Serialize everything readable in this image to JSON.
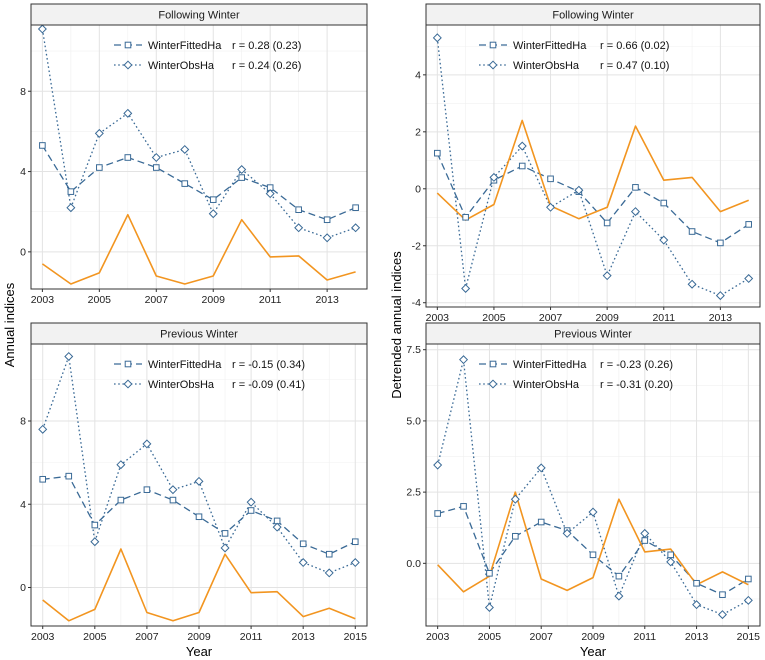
{
  "figure": {
    "left_ylabel": "Annual indices",
    "right_ylabel": "Detrended annual indices",
    "xlabel_left": "Year",
    "xlabel_right": "Year"
  },
  "chart_data": [
    {
      "type": "line",
      "strip": "Following Winter",
      "xlim": [
        2002.6,
        2014.4
      ],
      "ylim": [
        -1.85,
        11.3
      ],
      "yticks": [
        0,
        4,
        8
      ],
      "xticks": [
        2003,
        2005,
        2007,
        2009,
        2011,
        2013
      ],
      "grid": true,
      "legend": [
        {
          "name": "WinterFittedHa",
          "r": "r = 0.28 (0.23)",
          "marker": "square"
        },
        {
          "name": "WinterObsHa",
          "r": "r = 0.24 (0.26)",
          "marker": "diamond"
        }
      ],
      "series": [
        {
          "name": "WinterFittedHa",
          "color": "#3a6a96",
          "dash": "7,4",
          "marker": "square",
          "x": [
            2003,
            2004,
            2005,
            2006,
            2007,
            2008,
            2009,
            2010,
            2011,
            2012,
            2013,
            2014
          ],
          "y": [
            5.3,
            3.0,
            4.2,
            4.7,
            4.2,
            3.4,
            2.6,
            3.7,
            3.2,
            2.1,
            1.6,
            2.2
          ]
        },
        {
          "name": "WinterObsHa",
          "color": "#3a6a96",
          "dash": "1.6,2.6",
          "marker": "diamond",
          "x": [
            2003,
            2004,
            2005,
            2006,
            2007,
            2008,
            2009,
            2010,
            2011,
            2012,
            2013,
            2014
          ],
          "y": [
            11.1,
            2.2,
            5.9,
            6.9,
            4.7,
            5.1,
            1.9,
            4.1,
            2.9,
            1.2,
            0.7,
            1.2
          ]
        },
        {
          "name": "Index",
          "color": "#f29520",
          "dash": "",
          "marker": "none",
          "x": [
            2003,
            2004,
            2005,
            2006,
            2007,
            2008,
            2009,
            2010,
            2011,
            2012,
            2013,
            2014
          ],
          "y": [
            -0.6,
            -1.6,
            -1.05,
            1.85,
            -1.2,
            -1.6,
            -1.2,
            1.6,
            -0.25,
            -0.2,
            -1.4,
            -1.0
          ]
        }
      ]
    },
    {
      "type": "line",
      "strip": "Following Winter",
      "xlim": [
        2002.6,
        2014.4
      ],
      "ylim": [
        -4.15,
        5.75
      ],
      "yticks": [
        -4,
        -2,
        0,
        2,
        4
      ],
      "xticks": [
        2003,
        2005,
        2007,
        2009,
        2011,
        2013
      ],
      "grid": true,
      "legend": [
        {
          "name": "WinterFittedHa",
          "r": "r = 0.66 (0.02)",
          "marker": "square"
        },
        {
          "name": "WinterObsHa",
          "r": "r = 0.47 (0.10)",
          "marker": "diamond"
        }
      ],
      "series": [
        {
          "name": "WinterFittedHa",
          "color": "#3a6a96",
          "dash": "7,4",
          "marker": "square",
          "x": [
            2003,
            2004,
            2005,
            2006,
            2007,
            2008,
            2009,
            2010,
            2011,
            2012,
            2013,
            2014
          ],
          "y": [
            1.25,
            -1.0,
            0.3,
            0.8,
            0.35,
            -0.1,
            -1.2,
            0.05,
            -0.5,
            -1.5,
            -1.9,
            -1.25
          ]
        },
        {
          "name": "WinterObsHa",
          "color": "#3a6a96",
          "dash": "1.6,2.6",
          "marker": "diamond",
          "x": [
            2003,
            2004,
            2005,
            2006,
            2007,
            2008,
            2009,
            2010,
            2011,
            2012,
            2013,
            2014
          ],
          "y": [
            5.3,
            -3.5,
            0.4,
            1.5,
            -0.65,
            -0.05,
            -3.05,
            -0.8,
            -1.8,
            -3.35,
            -3.75,
            -3.15
          ]
        },
        {
          "name": "Index",
          "color": "#f29520",
          "dash": "",
          "marker": "none",
          "x": [
            2003,
            2004,
            2005,
            2006,
            2007,
            2008,
            2009,
            2010,
            2011,
            2012,
            2013,
            2014
          ],
          "y": [
            -0.15,
            -1.1,
            -0.55,
            2.4,
            -0.6,
            -1.05,
            -0.65,
            2.2,
            0.3,
            0.4,
            -0.8,
            -0.4
          ]
        }
      ]
    },
    {
      "type": "line",
      "strip": "Previous Winter",
      "xlim": [
        2002.55,
        2015.45
      ],
      "ylim": [
        -1.85,
        11.7
      ],
      "yticks": [
        0,
        4,
        8
      ],
      "xticks": [
        2003,
        2005,
        2007,
        2009,
        2011,
        2013,
        2015
      ],
      "grid": true,
      "legend": [
        {
          "name": "WinterFittedHa",
          "r": "r = -0.15 (0.34)",
          "marker": "square"
        },
        {
          "name": "WinterObsHa",
          "r": "r = -0.09 (0.41)",
          "marker": "diamond"
        }
      ],
      "series": [
        {
          "name": "WinterFittedHa",
          "color": "#3a6a96",
          "dash": "7,4",
          "marker": "square",
          "x": [
            2003,
            2004,
            2005,
            2006,
            2007,
            2008,
            2009,
            2010,
            2011,
            2012,
            2013,
            2014,
            2015
          ],
          "y": [
            5.2,
            5.35,
            3.0,
            4.2,
            4.7,
            4.2,
            3.4,
            2.6,
            3.7,
            3.2,
            2.1,
            1.6,
            2.2
          ]
        },
        {
          "name": "WinterObsHa",
          "color": "#3a6a96",
          "dash": "1.6,2.6",
          "marker": "diamond",
          "x": [
            2003,
            2004,
            2005,
            2006,
            2007,
            2008,
            2009,
            2010,
            2011,
            2012,
            2013,
            2014,
            2015
          ],
          "y": [
            7.6,
            11.1,
            2.2,
            5.9,
            6.9,
            4.7,
            5.1,
            1.9,
            4.1,
            2.9,
            1.2,
            0.7,
            1.2
          ]
        },
        {
          "name": "Index",
          "color": "#f29520",
          "dash": "",
          "marker": "none",
          "x": [
            2003,
            2004,
            2005,
            2006,
            2007,
            2008,
            2009,
            2010,
            2011,
            2012,
            2013,
            2014,
            2015
          ],
          "y": [
            -0.6,
            -1.6,
            -1.05,
            1.85,
            -1.2,
            -1.6,
            -1.2,
            1.6,
            -0.25,
            -0.2,
            -1.4,
            -1.0,
            -1.5
          ]
        }
      ]
    },
    {
      "type": "line",
      "strip": "Previous Winter",
      "xlim": [
        2002.55,
        2015.45
      ],
      "ylim": [
        -2.2,
        7.7
      ],
      "yticks": [
        0.0,
        2.5,
        5.0,
        7.5
      ],
      "ytick_labels": [
        "0.0",
        "2.5",
        "5.0",
        "7.5"
      ],
      "xticks": [
        2003,
        2005,
        2007,
        2009,
        2011,
        2013,
        2015
      ],
      "grid": true,
      "legend": [
        {
          "name": "WinterFittedHa",
          "r": "r = -0.23 (0.26)",
          "marker": "square"
        },
        {
          "name": "WinterObsHa",
          "r": "r = -0.31 (0.20)",
          "marker": "diamond"
        }
      ],
      "series": [
        {
          "name": "WinterFittedHa",
          "color": "#3a6a96",
          "dash": "7,4",
          "marker": "square",
          "x": [
            2003,
            2004,
            2005,
            2006,
            2007,
            2008,
            2009,
            2010,
            2011,
            2012,
            2013,
            2014,
            2015
          ],
          "y": [
            1.75,
            2.0,
            -0.35,
            0.95,
            1.45,
            1.15,
            0.3,
            -0.45,
            0.8,
            0.3,
            -0.7,
            -1.1,
            -0.55
          ]
        },
        {
          "name": "WinterObsHa",
          "color": "#3a6a96",
          "dash": "1.6,2.6",
          "marker": "diamond",
          "x": [
            2003,
            2004,
            2005,
            2006,
            2007,
            2008,
            2009,
            2010,
            2011,
            2012,
            2013,
            2014,
            2015
          ],
          "y": [
            3.45,
            7.15,
            -1.55,
            2.25,
            3.35,
            1.05,
            1.8,
            -1.15,
            1.05,
            0.05,
            -1.45,
            -1.8,
            -1.3
          ]
        },
        {
          "name": "Index",
          "color": "#f29520",
          "dash": "",
          "marker": "none",
          "x": [
            2003,
            2004,
            2005,
            2006,
            2007,
            2008,
            2009,
            2010,
            2011,
            2012,
            2013,
            2014,
            2015
          ],
          "y": [
            -0.05,
            -1.0,
            -0.45,
            2.5,
            -0.55,
            -0.95,
            -0.5,
            2.25,
            0.4,
            0.5,
            -0.75,
            -0.3,
            -0.75
          ]
        }
      ]
    }
  ]
}
